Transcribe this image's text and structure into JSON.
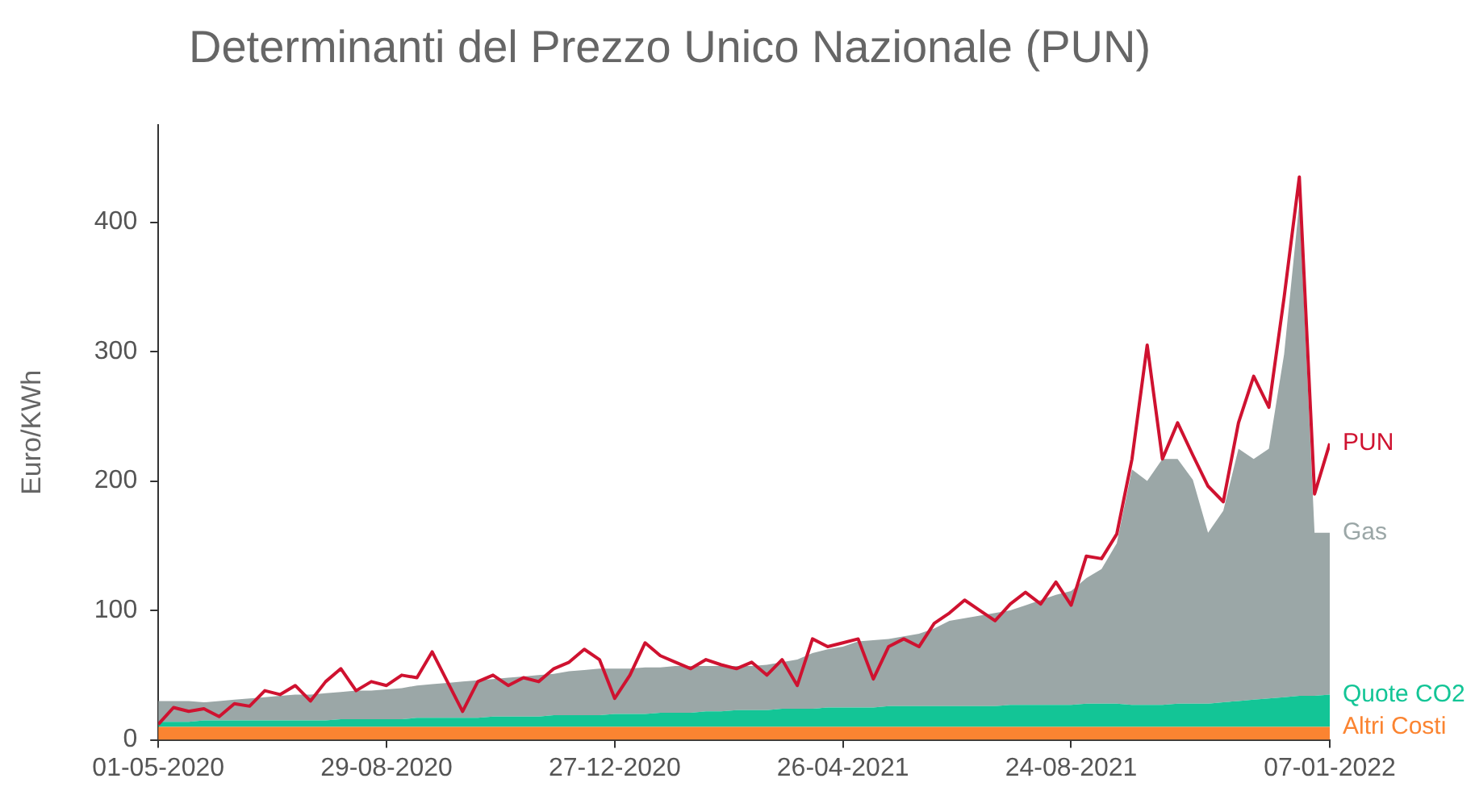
{
  "chart_data": {
    "type": "area",
    "title": "Determinanti del Prezzo Unico Nazionale (PUN)",
    "ylabel": "Euro/KWh",
    "stacked": true,
    "grid": false,
    "legend": "right",
    "marker": "none",
    "x": [
      "2020-05-01",
      "2020-05-09",
      "2020-05-17",
      "2020-05-25",
      "2020-06-02",
      "2020-06-10",
      "2020-06-18",
      "2020-06-26",
      "2020-07-04",
      "2020-07-12",
      "2020-07-20",
      "2020-07-28",
      "2020-08-05",
      "2020-08-13",
      "2020-08-21",
      "2020-08-29",
      "2020-09-06",
      "2020-09-14",
      "2020-09-22",
      "2020-09-30",
      "2020-10-08",
      "2020-10-16",
      "2020-10-24",
      "2020-11-01",
      "2020-11-09",
      "2020-11-17",
      "2020-11-25",
      "2020-12-03",
      "2020-12-11",
      "2020-12-19",
      "2020-12-27",
      "2021-01-04",
      "2021-01-12",
      "2021-01-20",
      "2021-01-28",
      "2021-02-05",
      "2021-02-13",
      "2021-02-21",
      "2021-03-01",
      "2021-03-09",
      "2021-03-17",
      "2021-03-25",
      "2021-04-02",
      "2021-04-10",
      "2021-04-18",
      "2021-04-26",
      "2021-05-04",
      "2021-05-12",
      "2021-05-20",
      "2021-05-28",
      "2021-06-05",
      "2021-06-13",
      "2021-06-21",
      "2021-06-29",
      "2021-07-07",
      "2021-07-15",
      "2021-07-23",
      "2021-07-31",
      "2021-08-08",
      "2021-08-16",
      "2021-08-24",
      "2021-09-01",
      "2021-09-09",
      "2021-09-17",
      "2021-09-25",
      "2021-10-03",
      "2021-10-11",
      "2021-10-19",
      "2021-10-27",
      "2021-11-04",
      "2021-11-12",
      "2021-11-20",
      "2021-11-28",
      "2021-12-06",
      "2021-12-14",
      "2021-12-22",
      "2021-12-30",
      "2022-01-07"
    ],
    "xlim": [
      "2020-05-01",
      "2022-01-07"
    ],
    "xticks": [
      {
        "value": "2020-05-01",
        "label": "01-05-2020"
      },
      {
        "value": "2020-08-29",
        "label": "29-08-2020"
      },
      {
        "value": "2020-12-27",
        "label": "27-12-2020"
      },
      {
        "value": "2021-04-26",
        "label": "26-04-2021"
      },
      {
        "value": "2021-08-24",
        "label": "24-08-2021"
      },
      {
        "value": "2022-01-07",
        "label": "07-01-2022"
      }
    ],
    "ylim": [
      0,
      475
    ],
    "yticks": [
      0,
      100,
      200,
      300,
      400
    ],
    "series": [
      {
        "name": "Altri Costi",
        "type": "area",
        "color": "#fb8431",
        "values": [
          10,
          10,
          10,
          10,
          10,
          10,
          10,
          10,
          10,
          10,
          10,
          10,
          10,
          10,
          10,
          10,
          10,
          10,
          10,
          10,
          10,
          10,
          10,
          10,
          10,
          10,
          10,
          10,
          10,
          10,
          10,
          10,
          10,
          10,
          10,
          10,
          10,
          10,
          10,
          10,
          10,
          10,
          10,
          10,
          10,
          10,
          10,
          10,
          10,
          10,
          10,
          10,
          10,
          10,
          10,
          10,
          10,
          10,
          10,
          10,
          10,
          10,
          10,
          10,
          10,
          10,
          10,
          10,
          10,
          10,
          10,
          10,
          10,
          10,
          10,
          10,
          10,
          10
        ]
      },
      {
        "name": "Quote CO2",
        "type": "area",
        "color": "#13c596",
        "values": [
          4,
          4,
          4,
          5,
          5,
          5,
          5,
          5,
          5,
          5,
          5,
          5,
          6,
          6,
          6,
          6,
          6,
          7,
          7,
          7,
          7,
          7,
          8,
          8,
          8,
          8,
          9,
          9,
          9,
          9,
          10,
          10,
          10,
          11,
          11,
          11,
          12,
          12,
          13,
          13,
          13,
          14,
          14,
          14,
          15,
          15,
          15,
          15,
          16,
          16,
          16,
          16,
          16,
          16,
          16,
          16,
          17,
          17,
          17,
          17,
          17,
          18,
          18,
          18,
          17,
          17,
          17,
          18,
          18,
          18,
          19,
          20,
          21,
          22,
          23,
          24,
          24,
          25
        ]
      },
      {
        "name": "Gas",
        "type": "area",
        "color": "#9ba7a7",
        "values": [
          16,
          16,
          16,
          14,
          15,
          16,
          17,
          18,
          19,
          20,
          20,
          21,
          21,
          22,
          22,
          23,
          24,
          25,
          26,
          27,
          28,
          29,
          29,
          30,
          31,
          32,
          32,
          34,
          35,
          36,
          35,
          35,
          36,
          35,
          36,
          36,
          35,
          35,
          34,
          34,
          35,
          36,
          38,
          43,
          45,
          47,
          51,
          52,
          52,
          54,
          56,
          60,
          66,
          68,
          70,
          72,
          73,
          77,
          81,
          85,
          88,
          97,
          104,
          124,
          182,
          173,
          190,
          189,
          173,
          132,
          148,
          195,
          186,
          193,
          265,
          381,
          126,
          125
        ]
      },
      {
        "name": "PUN",
        "type": "line",
        "color": "#cf1230",
        "values": [
          12,
          25,
          22,
          24,
          18,
          28,
          26,
          38,
          35,
          42,
          30,
          45,
          55,
          38,
          45,
          42,
          50,
          48,
          68,
          45,
          22,
          45,
          50,
          42,
          48,
          45,
          55,
          60,
          70,
          62,
          32,
          50,
          75,
          65,
          60,
          55,
          62,
          58,
          55,
          60,
          50,
          62,
          42,
          78,
          72,
          75,
          78,
          47,
          72,
          78,
          72,
          90,
          98,
          108,
          100,
          92,
          105,
          114,
          105,
          122,
          104,
          142,
          140,
          159,
          217,
          305,
          217,
          245,
          220,
          196,
          184,
          245,
          281,
          257,
          342,
          435,
          190,
          229
        ]
      }
    ]
  }
}
